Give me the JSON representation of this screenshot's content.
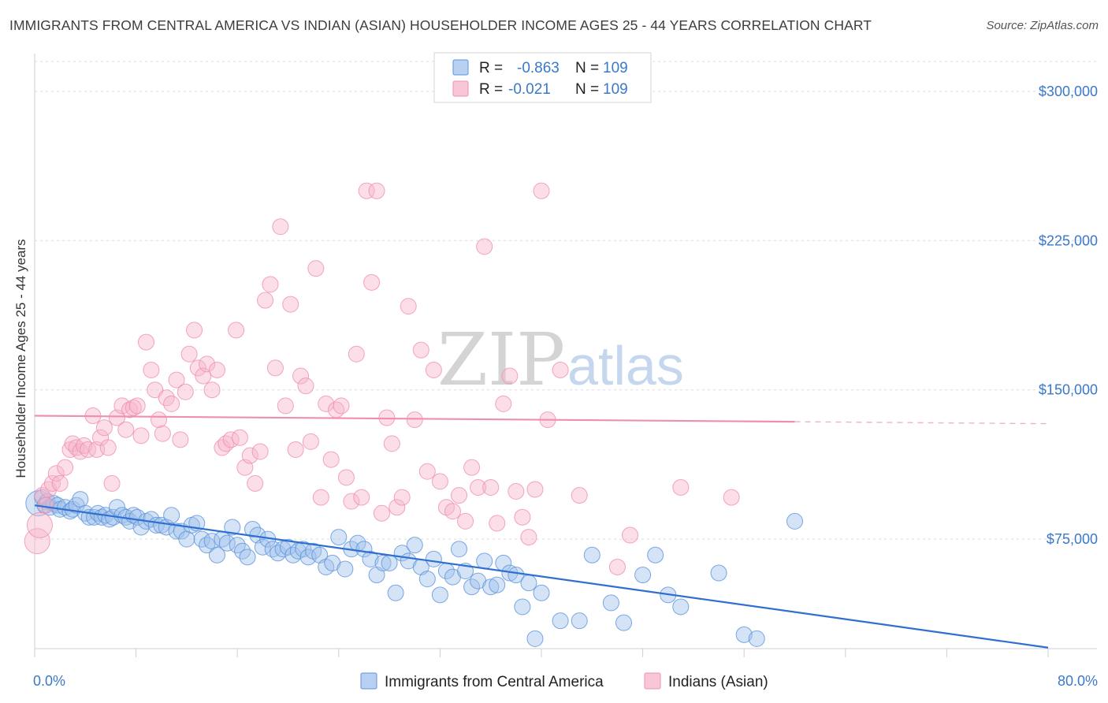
{
  "header": {
    "title": "IMMIGRANTS FROM CENTRAL AMERICA VS INDIAN (ASIAN) HOUSEHOLDER INCOME AGES 25 - 44 YEARS CORRELATION CHART",
    "source": "Source: ZipAtlas.com"
  },
  "watermark": {
    "zip": "ZIP",
    "atlas": "atlas"
  },
  "legend": {
    "r_label": "R =",
    "n_label": "N =",
    "entries": [
      {
        "r": "-0.863",
        "n": "109",
        "color": "#5b93db"
      },
      {
        "r": "-0.021",
        "n": "109",
        "color": "#ef8fb0"
      }
    ]
  },
  "bottom_legend": {
    "items": [
      {
        "label": "Immigrants from Central America",
        "color": "#5b93db"
      },
      {
        "label": "Indians (Asian)",
        "color": "#ef8fb0"
      }
    ]
  },
  "chart_data": {
    "type": "scatter",
    "ylabel": "Householder Income Ages 25 - 44 years",
    "xlabel": "",
    "x_ticks_labels": [
      "0.0%",
      "80.0%"
    ],
    "xlim": [
      0,
      80
    ],
    "ylim": [
      20000,
      315000
    ],
    "y_ticks": [
      {
        "value": 75000,
        "label": "$75,000"
      },
      {
        "value": 150000,
        "label": "$150,000"
      },
      {
        "value": 225000,
        "label": "$225,000"
      },
      {
        "value": 300000,
        "label": "$300,000"
      }
    ],
    "grid": true,
    "legend_position": "top-center",
    "series": [
      {
        "name": "Immigrants from Central America",
        "color": "#5b93db",
        "trend": {
          "x0": 0,
          "y0": 92000,
          "x1": 80,
          "y1": 20500,
          "dashed_from": null
        },
        "points": [
          [
            0.3,
            93000
          ],
          [
            0.6,
            96000
          ],
          [
            0.8,
            92000
          ],
          [
            1.0,
            94000
          ],
          [
            1.2,
            91000
          ],
          [
            1.5,
            93000
          ],
          [
            1.8,
            92000
          ],
          [
            2.0,
            90000
          ],
          [
            2.4,
            91000
          ],
          [
            2.8,
            89000
          ],
          [
            3.0,
            90000
          ],
          [
            3.3,
            92000
          ],
          [
            3.6,
            95000
          ],
          [
            4.0,
            88000
          ],
          [
            4.3,
            86000
          ],
          [
            4.7,
            86000
          ],
          [
            5.0,
            88000
          ],
          [
            5.3,
            86000
          ],
          [
            5.6,
            87000
          ],
          [
            5.9,
            85000
          ],
          [
            6.2,
            86000
          ],
          [
            6.5,
            91000
          ],
          [
            6.9,
            87000
          ],
          [
            7.2,
            86000
          ],
          [
            7.5,
            84000
          ],
          [
            7.8,
            87000
          ],
          [
            8.1,
            86000
          ],
          [
            8.4,
            81000
          ],
          [
            8.8,
            84000
          ],
          [
            9.2,
            85000
          ],
          [
            9.6,
            82000
          ],
          [
            10.0,
            82000
          ],
          [
            10.4,
            81000
          ],
          [
            10.8,
            87000
          ],
          [
            11.2,
            79000
          ],
          [
            11.6,
            79000
          ],
          [
            12.0,
            75000
          ],
          [
            12.4,
            82000
          ],
          [
            12.8,
            83000
          ],
          [
            13.2,
            75000
          ],
          [
            13.6,
            72000
          ],
          [
            14.0,
            74000
          ],
          [
            14.4,
            67000
          ],
          [
            14.8,
            75000
          ],
          [
            15.2,
            73000
          ],
          [
            15.6,
            81000
          ],
          [
            16.0,
            72000
          ],
          [
            16.4,
            69000
          ],
          [
            16.8,
            66000
          ],
          [
            17.2,
            80000
          ],
          [
            17.6,
            77000
          ],
          [
            18.0,
            71000
          ],
          [
            18.4,
            75000
          ],
          [
            18.8,
            70000
          ],
          [
            19.2,
            68000
          ],
          [
            19.6,
            70000
          ],
          [
            20.0,
            71000
          ],
          [
            20.4,
            67000
          ],
          [
            20.8,
            69000
          ],
          [
            21.2,
            70000
          ],
          [
            21.6,
            66000
          ],
          [
            22.0,
            69000
          ],
          [
            22.5,
            67000
          ],
          [
            23.0,
            61000
          ],
          [
            23.5,
            63000
          ],
          [
            24.0,
            76000
          ],
          [
            24.5,
            60000
          ],
          [
            25.0,
            70000
          ],
          [
            25.5,
            73000
          ],
          [
            26.0,
            70000
          ],
          [
            26.5,
            65000
          ],
          [
            27.0,
            57000
          ],
          [
            27.5,
            63000
          ],
          [
            28.0,
            63000
          ],
          [
            28.5,
            48000
          ],
          [
            29.0,
            68000
          ],
          [
            29.5,
            64000
          ],
          [
            30.0,
            72000
          ],
          [
            30.5,
            61000
          ],
          [
            31.0,
            55000
          ],
          [
            31.5,
            65000
          ],
          [
            32.0,
            47000
          ],
          [
            32.5,
            59000
          ],
          [
            33.0,
            56000
          ],
          [
            33.5,
            70000
          ],
          [
            34.0,
            59000
          ],
          [
            34.5,
            51000
          ],
          [
            35.0,
            54000
          ],
          [
            35.5,
            64000
          ],
          [
            36.0,
            51000
          ],
          [
            36.5,
            52000
          ],
          [
            37.0,
            63000
          ],
          [
            37.5,
            58000
          ],
          [
            38.0,
            57000
          ],
          [
            38.5,
            41000
          ],
          [
            39.0,
            53000
          ],
          [
            39.5,
            25000
          ],
          [
            40.0,
            48000
          ],
          [
            41.5,
            34000
          ],
          [
            43.0,
            34000
          ],
          [
            44.0,
            67000
          ],
          [
            45.5,
            43000
          ],
          [
            46.5,
            33000
          ],
          [
            48.0,
            57000
          ],
          [
            49.0,
            67000
          ],
          [
            50.0,
            47000
          ],
          [
            51.0,
            41000
          ],
          [
            54.0,
            58000
          ],
          [
            56.0,
            27000
          ],
          [
            57.0,
            25000
          ],
          [
            60.0,
            84000
          ]
        ]
      },
      {
        "name": "Indians (Asian)",
        "color": "#ef8fb0",
        "trend": {
          "x0": 0,
          "y0": 137000,
          "x1": 80,
          "y1": 133000,
          "dashed_from": 60
        },
        "points": [
          [
            0.2,
            74000
          ],
          [
            0.4,
            82000
          ],
          [
            0.6,
            97000
          ],
          [
            0.9,
            92000
          ],
          [
            1.1,
            100000
          ],
          [
            1.4,
            103000
          ],
          [
            1.7,
            108000
          ],
          [
            2.0,
            103000
          ],
          [
            2.4,
            111000
          ],
          [
            2.8,
            120000
          ],
          [
            3.0,
            123000
          ],
          [
            3.3,
            121000
          ],
          [
            3.6,
            119000
          ],
          [
            3.9,
            122000
          ],
          [
            4.2,
            120000
          ],
          [
            4.6,
            137000
          ],
          [
            4.9,
            120000
          ],
          [
            5.2,
            126000
          ],
          [
            5.5,
            131000
          ],
          [
            5.8,
            121000
          ],
          [
            6.1,
            103000
          ],
          [
            6.5,
            136000
          ],
          [
            6.9,
            142000
          ],
          [
            7.2,
            130000
          ],
          [
            7.5,
            140000
          ],
          [
            7.8,
            141000
          ],
          [
            8.1,
            142000
          ],
          [
            8.4,
            127000
          ],
          [
            8.8,
            174000
          ],
          [
            9.2,
            160000
          ],
          [
            9.5,
            150000
          ],
          [
            9.8,
            135000
          ],
          [
            10.1,
            128000
          ],
          [
            10.4,
            146000
          ],
          [
            10.8,
            143000
          ],
          [
            11.2,
            155000
          ],
          [
            11.5,
            125000
          ],
          [
            11.9,
            149000
          ],
          [
            12.2,
            168000
          ],
          [
            12.6,
            180000
          ],
          [
            12.9,
            161000
          ],
          [
            13.3,
            157000
          ],
          [
            13.6,
            163000
          ],
          [
            14.0,
            150000
          ],
          [
            14.4,
            160000
          ],
          [
            14.8,
            121000
          ],
          [
            15.1,
            123000
          ],
          [
            15.5,
            125000
          ],
          [
            15.9,
            180000
          ],
          [
            16.2,
            126000
          ],
          [
            16.6,
            111000
          ],
          [
            17.0,
            117000
          ],
          [
            17.4,
            103000
          ],
          [
            17.8,
            119000
          ],
          [
            18.2,
            195000
          ],
          [
            18.6,
            203000
          ],
          [
            19.0,
            161000
          ],
          [
            19.4,
            232000
          ],
          [
            19.8,
            142000
          ],
          [
            20.2,
            193000
          ],
          [
            20.6,
            120000
          ],
          [
            21.0,
            157000
          ],
          [
            21.4,
            152000
          ],
          [
            21.8,
            124000
          ],
          [
            22.2,
            211000
          ],
          [
            22.6,
            96000
          ],
          [
            23.0,
            143000
          ],
          [
            23.4,
            115000
          ],
          [
            23.8,
            140000
          ],
          [
            24.2,
            142000
          ],
          [
            24.6,
            106000
          ],
          [
            25.0,
            94000
          ],
          [
            25.4,
            168000
          ],
          [
            25.8,
            96000
          ],
          [
            26.2,
            250000
          ],
          [
            26.6,
            204000
          ],
          [
            27.0,
            250000
          ],
          [
            27.4,
            88000
          ],
          [
            27.8,
            136000
          ],
          [
            28.2,
            123000
          ],
          [
            28.6,
            91000
          ],
          [
            29.0,
            96000
          ],
          [
            29.5,
            192000
          ],
          [
            30.0,
            135000
          ],
          [
            30.5,
            170000
          ],
          [
            31.0,
            109000
          ],
          [
            31.5,
            160000
          ],
          [
            32.0,
            104000
          ],
          [
            32.5,
            91000
          ],
          [
            33.0,
            89000
          ],
          [
            33.5,
            97000
          ],
          [
            34.0,
            84000
          ],
          [
            34.5,
            111000
          ],
          [
            35.0,
            101000
          ],
          [
            35.5,
            222000
          ],
          [
            36.0,
            101000
          ],
          [
            36.5,
            83000
          ],
          [
            37.0,
            143000
          ],
          [
            37.5,
            157000
          ],
          [
            38.0,
            99000
          ],
          [
            38.5,
            86000
          ],
          [
            39.0,
            76000
          ],
          [
            39.5,
            100000
          ],
          [
            40.0,
            250000
          ],
          [
            40.5,
            135000
          ],
          [
            41.5,
            160000
          ],
          [
            43.0,
            97000
          ],
          [
            46.0,
            61000
          ],
          [
            47.0,
            77000
          ],
          [
            51.0,
            101000
          ],
          [
            55.0,
            96000
          ]
        ]
      }
    ]
  }
}
